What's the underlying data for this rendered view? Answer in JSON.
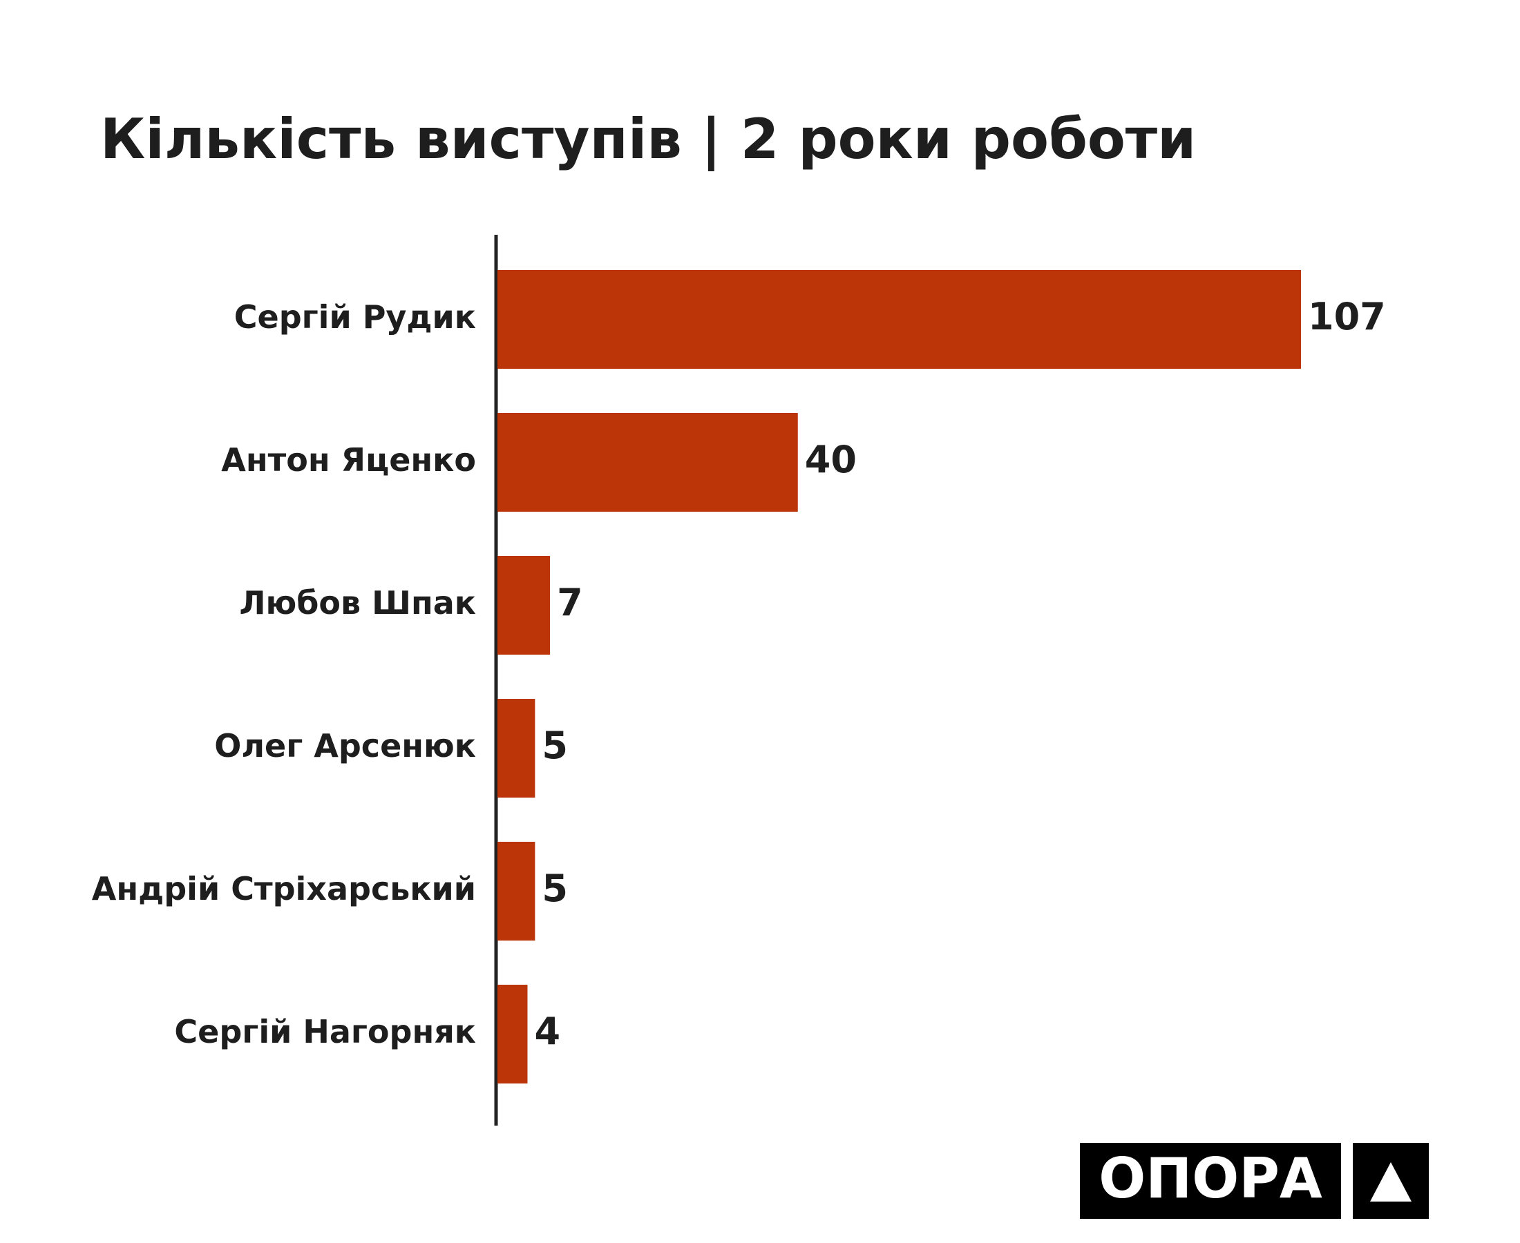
{
  "chart_data": {
    "type": "bar",
    "orientation": "horizontal",
    "title": "Кількість виступів | 2 роки роботи",
    "categories": [
      "Сергій Рудик",
      "Антон Яценко",
      "Любов Шпак",
      "Олег Арсенюк",
      "Андрій Стріхарський",
      "Сергій Нагорняк"
    ],
    "values": [
      107,
      40,
      7,
      5,
      5,
      4
    ],
    "color": "#bb3508"
  },
  "logo": "ОПОРА"
}
